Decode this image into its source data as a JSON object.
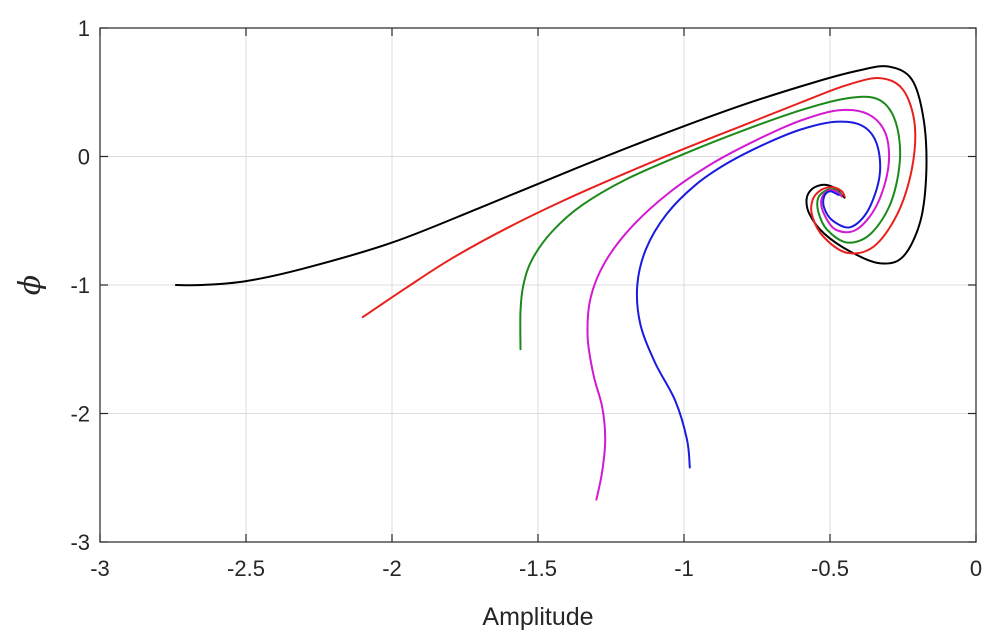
{
  "chart_data": {
    "type": "line",
    "title": "",
    "xlabel": "Amplitude",
    "ylabel": "ϕ",
    "xlim": [
      -3,
      0
    ],
    "ylim": [
      -3,
      1
    ],
    "xticks": [
      -3,
      -2.5,
      -2,
      -1.5,
      -1,
      -0.5,
      0
    ],
    "yticks": [
      -3,
      -2,
      -1,
      0,
      1
    ],
    "xtick_labels": [
      "-3",
      "-2.5",
      "-2",
      "-1.5",
      "-1",
      "-0.5",
      "0"
    ],
    "ytick_labels": [
      "-3",
      "-2",
      "-1",
      "0",
      "1"
    ],
    "grid": true,
    "legend": "none",
    "series": [
      {
        "color": "#000000",
        "x": [
          -2.74,
          -2.65,
          -2.5,
          -2.3,
          -2.0,
          -1.7,
          -1.4,
          -1.1,
          -0.8,
          -0.55,
          -0.4,
          -0.3,
          -0.22,
          -0.18,
          -0.17,
          -0.19,
          -0.25,
          -0.33,
          -0.43,
          -0.52,
          -0.57,
          -0.58,
          -0.56,
          -0.52,
          -0.48,
          -0.46,
          -0.45
        ],
        "y": [
          -1.0,
          -1.0,
          -0.97,
          -0.87,
          -0.67,
          -0.4,
          -0.12,
          0.15,
          0.4,
          0.58,
          0.67,
          0.7,
          0.6,
          0.3,
          -0.1,
          -0.5,
          -0.78,
          -0.83,
          -0.74,
          -0.6,
          -0.45,
          -0.33,
          -0.25,
          -0.22,
          -0.25,
          -0.3,
          -0.32
        ]
      },
      {
        "color": "#e8201c",
        "x": [
          -2.1,
          -1.95,
          -1.8,
          -1.6,
          -1.4,
          -1.2,
          -1.0,
          -0.8,
          -0.6,
          -0.45,
          -0.33,
          -0.25,
          -0.21,
          -0.22,
          -0.27,
          -0.35,
          -0.44,
          -0.52,
          -0.56,
          -0.56,
          -0.53,
          -0.49,
          -0.46,
          -0.45
        ],
        "y": [
          -1.25,
          -1.02,
          -0.8,
          -0.55,
          -0.33,
          -0.13,
          0.06,
          0.24,
          0.42,
          0.55,
          0.61,
          0.52,
          0.25,
          -0.1,
          -0.45,
          -0.7,
          -0.75,
          -0.63,
          -0.47,
          -0.34,
          -0.26,
          -0.24,
          -0.27,
          -0.31
        ]
      },
      {
        "color": "#1b8a1b",
        "x": [
          -1.56,
          -1.56,
          -1.55,
          -1.52,
          -1.45,
          -1.35,
          -1.2,
          -1.0,
          -0.8,
          -0.6,
          -0.45,
          -0.34,
          -0.28,
          -0.26,
          -0.29,
          -0.36,
          -0.44,
          -0.51,
          -0.54,
          -0.54,
          -0.51,
          -0.48,
          -0.46
        ],
        "y": [
          -1.5,
          -1.2,
          -1.0,
          -0.8,
          -0.58,
          -0.38,
          -0.18,
          0.02,
          0.2,
          0.36,
          0.45,
          0.45,
          0.3,
          0.0,
          -0.35,
          -0.6,
          -0.67,
          -0.57,
          -0.43,
          -0.32,
          -0.26,
          -0.26,
          -0.3
        ]
      },
      {
        "color": "#d21ad2",
        "x": [
          -1.3,
          -1.28,
          -1.27,
          -1.28,
          -1.31,
          -1.33,
          -1.32,
          -1.27,
          -1.18,
          -1.05,
          -0.9,
          -0.75,
          -0.6,
          -0.47,
          -0.37,
          -0.31,
          -0.3,
          -0.34,
          -0.41,
          -0.48,
          -0.52,
          -0.53,
          -0.51,
          -0.48,
          -0.46
        ],
        "y": [
          -2.67,
          -2.45,
          -2.2,
          -1.95,
          -1.7,
          -1.4,
          -1.1,
          -0.82,
          -0.55,
          -0.28,
          -0.05,
          0.13,
          0.28,
          0.36,
          0.33,
          0.18,
          -0.08,
          -0.38,
          -0.57,
          -0.57,
          -0.45,
          -0.34,
          -0.27,
          -0.27,
          -0.31
        ]
      },
      {
        "color": "#1a1ae0",
        "x": [
          -0.98,
          -0.99,
          -1.03,
          -1.1,
          -1.15,
          -1.16,
          -1.13,
          -1.06,
          -0.96,
          -0.85,
          -0.72,
          -0.6,
          -0.48,
          -0.39,
          -0.34,
          -0.33,
          -0.37,
          -0.43,
          -0.49,
          -0.52,
          -0.52,
          -0.5,
          -0.47
        ],
        "y": [
          -2.42,
          -2.2,
          -1.9,
          -1.6,
          -1.3,
          -1.0,
          -0.72,
          -0.45,
          -0.22,
          -0.05,
          0.1,
          0.21,
          0.27,
          0.24,
          0.1,
          -0.15,
          -0.42,
          -0.55,
          -0.5,
          -0.4,
          -0.31,
          -0.27,
          -0.3
        ]
      }
    ]
  }
}
